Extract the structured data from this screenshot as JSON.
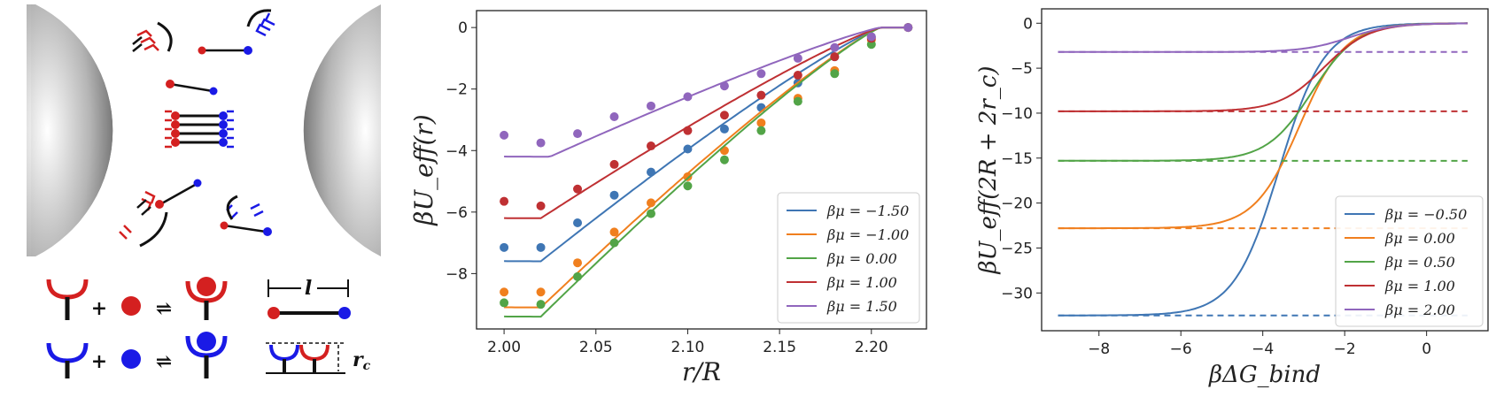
{
  "schematic": {
    "plus": "+",
    "equilibrium": "⇌",
    "length_label": "l",
    "height_label": "r",
    "height_subscript": "c",
    "red_color": "#d42020",
    "blue_color": "#1a1ae6"
  },
  "chart_data": [
    {
      "type": "line+scatter",
      "xlabel": "r/R",
      "ylabel": "βU_eff(r)",
      "xlim": [
        1.985,
        2.23
      ],
      "ylim": [
        -9.8,
        0.55
      ],
      "xticks": [
        "2.00",
        "2.05",
        "2.10",
        "2.15",
        "2.20"
      ],
      "xtick_values": [
        2.0,
        2.05,
        2.1,
        2.15,
        2.2
      ],
      "yticks": [
        "0",
        "−2",
        "−4",
        "−6",
        "−8"
      ],
      "ytick_values": [
        0,
        -2,
        -4,
        -6,
        -8
      ],
      "legend_position": "bottom-right",
      "series": [
        {
          "name": "βμ = −1.50",
          "color": "#3f76b4",
          "min": -7.6,
          "x_min": 2.02,
          "points_x": [
            2.0,
            2.02,
            2.04,
            2.06,
            2.08,
            2.1,
            2.12,
            2.14,
            2.16,
            2.18,
            2.2,
            2.22
          ],
          "points_y": [
            -7.15,
            -7.15,
            -6.35,
            -5.45,
            -4.7,
            -3.95,
            -3.3,
            -2.6,
            -1.8,
            -0.95,
            -0.3,
            0
          ]
        },
        {
          "name": "βμ = −1.00",
          "color": "#f07f1e",
          "min": -9.1,
          "x_min": 2.02,
          "points_x": [
            2.0,
            2.02,
            2.04,
            2.06,
            2.08,
            2.1,
            2.12,
            2.14,
            2.16,
            2.18,
            2.2,
            2.22
          ],
          "points_y": [
            -8.6,
            -8.6,
            -7.65,
            -6.65,
            -5.7,
            -4.85,
            -4.0,
            -3.1,
            -2.3,
            -1.4,
            -0.4,
            0
          ]
        },
        {
          "name": "βμ = 0.00",
          "color": "#52a447",
          "min": -9.4,
          "x_min": 2.02,
          "points_x": [
            2.0,
            2.02,
            2.04,
            2.06,
            2.08,
            2.1,
            2.12,
            2.14,
            2.16,
            2.18,
            2.2,
            2.22
          ],
          "points_y": [
            -8.95,
            -9.0,
            -8.1,
            -7.0,
            -6.05,
            -5.15,
            -4.3,
            -3.35,
            -2.4,
            -1.5,
            -0.55,
            0
          ]
        },
        {
          "name": "βμ = 1.00",
          "color": "#bf3033",
          "min": -6.2,
          "x_min": 2.02,
          "points_x": [
            2.0,
            2.02,
            2.04,
            2.06,
            2.08,
            2.1,
            2.12,
            2.14,
            2.16,
            2.18,
            2.2,
            2.22
          ],
          "points_y": [
            -5.65,
            -5.8,
            -5.25,
            -4.45,
            -3.85,
            -3.35,
            -2.85,
            -2.2,
            -1.55,
            -0.95,
            -0.35,
            0
          ]
        },
        {
          "name": "βμ = 1.50",
          "color": "#9066bd",
          "min": -4.2,
          "x_min": 2.025,
          "points_x": [
            2.0,
            2.02,
            2.04,
            2.06,
            2.08,
            2.1,
            2.12,
            2.14,
            2.16,
            2.18,
            2.2,
            2.22
          ],
          "points_y": [
            -3.5,
            -3.75,
            -3.45,
            -2.9,
            -2.55,
            -2.25,
            -1.9,
            -1.5,
            -1.0,
            -0.65,
            -0.3,
            0
          ]
        }
      ]
    },
    {
      "type": "line",
      "xlabel": "βΔG_bind",
      "ylabel": "βU_eff(2R + 2r_c)",
      "xlim": [
        -9.4,
        1.5
      ],
      "ylim": [
        -34.2,
        1.6
      ],
      "xticks": [
        "−8",
        "−6",
        "−4",
        "−2",
        "0"
      ],
      "xtick_values": [
        -8,
        -6,
        -4,
        -2,
        0
      ],
      "yticks": [
        "0",
        "−5",
        "−10",
        "−15",
        "−20",
        "−25",
        "−30"
      ],
      "ytick_values": [
        0,
        -5,
        -10,
        -15,
        -20,
        -25,
        -30
      ],
      "legend_position": "bottom-right",
      "series": [
        {
          "name": "βμ = −0.50",
          "color": "#3f76b4",
          "plateau": -32.5,
          "midpoint": -3.6
        },
        {
          "name": "βμ = 0.00",
          "color": "#f07f1e",
          "plateau": -22.8,
          "midpoint": -3.1
        },
        {
          "name": "βμ = 0.50",
          "color": "#52a447",
          "plateau": -15.3,
          "midpoint": -2.8
        },
        {
          "name": "βμ = 1.00",
          "color": "#bf3033",
          "plateau": -9.8,
          "midpoint": -2.5
        },
        {
          "name": "βμ = 2.00",
          "color": "#9066bd",
          "plateau": -3.2,
          "midpoint": -1.9
        }
      ]
    }
  ]
}
